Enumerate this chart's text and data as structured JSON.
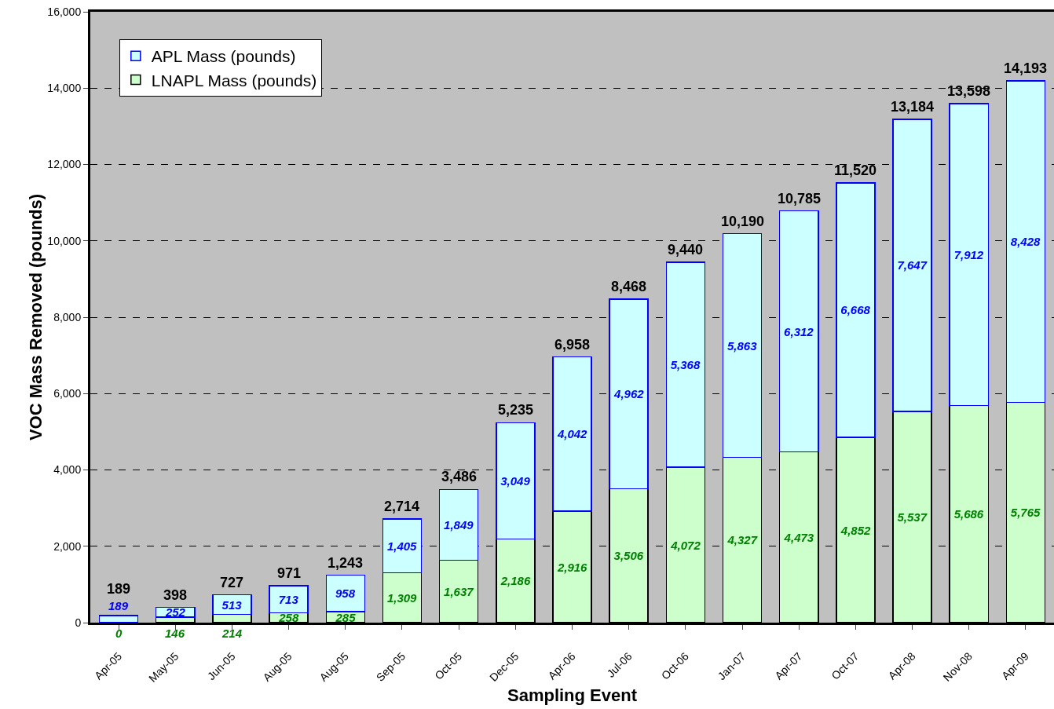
{
  "chart_data": {
    "type": "bar",
    "stacked": true,
    "xlabel": "Sampling Event",
    "ylabel": "VOC Mass Removed (pounds)",
    "categories": [
      "Apr-05",
      "May-05",
      "Jun-05",
      "Aug-05",
      "Aug-05",
      "Sep-05",
      "Oct-05",
      "Dec-05",
      "Apr-06",
      "Jul-06",
      "Oct-06",
      "Jan-07",
      "Apr-07",
      "Oct-07",
      "Apr-08",
      "Nov-08",
      "Apr-09"
    ],
    "series": [
      {
        "name": "LNAPL Mass (pounds)",
        "color": "#ccffcc",
        "values": [
          0,
          146,
          214,
          258,
          285,
          1309,
          1637,
          2186,
          2916,
          3506,
          4072,
          4327,
          4473,
          4852,
          5537,
          5686,
          5765
        ],
        "value_labels": [
          "0",
          "146",
          "214",
          "258",
          "285",
          "1,309",
          "1,637",
          "2,186",
          "2,916",
          "3,506",
          "4,072",
          "4,327",
          "4,473",
          "4,852",
          "5,537",
          "5,686",
          "5,765"
        ]
      },
      {
        "name": "APL Mass (pounds)",
        "color": "#ccffff",
        "values": [
          189,
          252,
          513,
          713,
          958,
          1405,
          1849,
          3049,
          4042,
          4962,
          5368,
          5863,
          6312,
          6668,
          7647,
          7912,
          8428
        ],
        "value_labels": [
          "189",
          "252",
          "513",
          "713",
          "958",
          "1,405",
          "1,849",
          "3,049",
          "4,042",
          "4,962",
          "5,368",
          "5,863",
          "6,312",
          "6,668",
          "7,647",
          "7,912",
          "8,428"
        ]
      }
    ],
    "totals": [
      "189",
      "398",
      "727",
      "971",
      "1,243",
      "2,714",
      "3,486",
      "5,235",
      "6,958",
      "8,468",
      "9,440",
      "10,190",
      "10,785",
      "11,520",
      "13,184",
      "13,598",
      "14,193"
    ],
    "ylim": [
      0,
      16000
    ],
    "yticks": [
      {
        "value": 0,
        "label": "0"
      },
      {
        "value": 2000,
        "label": "2,000"
      },
      {
        "value": 4000,
        "label": "4,000"
      },
      {
        "value": 6000,
        "label": "6,000"
      },
      {
        "value": 8000,
        "label": "8,000"
      },
      {
        "value": 10000,
        "label": "10,000"
      },
      {
        "value": 12000,
        "label": "12,000"
      },
      {
        "value": 14000,
        "label": "14,000"
      },
      {
        "value": 16000,
        "label": "16,000"
      }
    ],
    "grid": "y",
    "legend": "top left"
  }
}
